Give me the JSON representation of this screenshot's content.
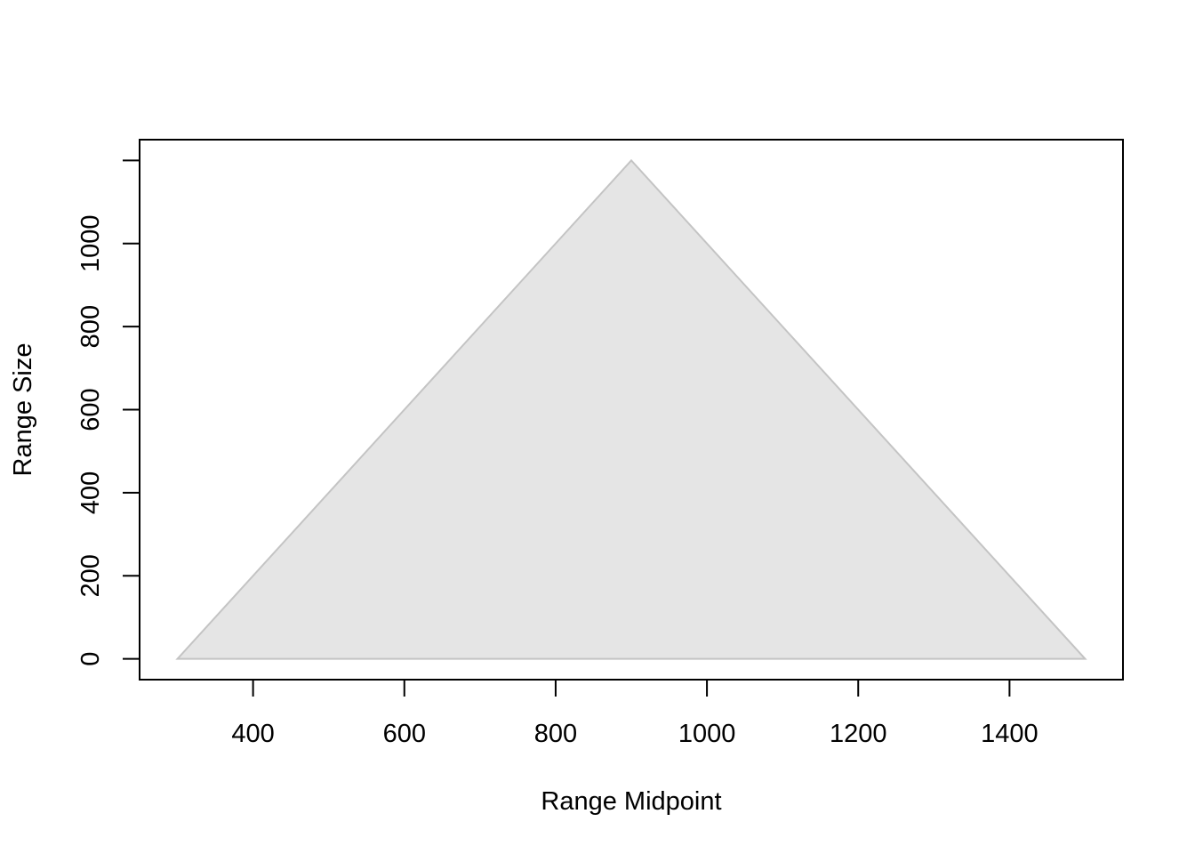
{
  "chart_data": {
    "type": "area",
    "title": "",
    "xlabel": "Range Midpoint",
    "ylabel": "Range Size",
    "xlim": [
      250,
      1550
    ],
    "ylim": [
      -50,
      1250
    ],
    "x_ticks": [
      400,
      600,
      800,
      1000,
      1200,
      1400
    ],
    "x_tick_labels": [
      "400",
      "600",
      "800",
      "1000",
      "1200",
      "1400"
    ],
    "y_ticks": [
      0,
      200,
      400,
      600,
      800,
      1000,
      1200
    ],
    "y_tick_labels": [
      "0",
      "200",
      "400",
      "600",
      "800",
      "1000",
      ""
    ],
    "grid": false,
    "legend": "none",
    "series": [
      {
        "x": [
          300,
          900,
          1500
        ],
        "y": [
          0,
          1200,
          0
        ],
        "fill": "#e5e5e5",
        "stroke": "#c4c4c4"
      }
    ]
  }
}
